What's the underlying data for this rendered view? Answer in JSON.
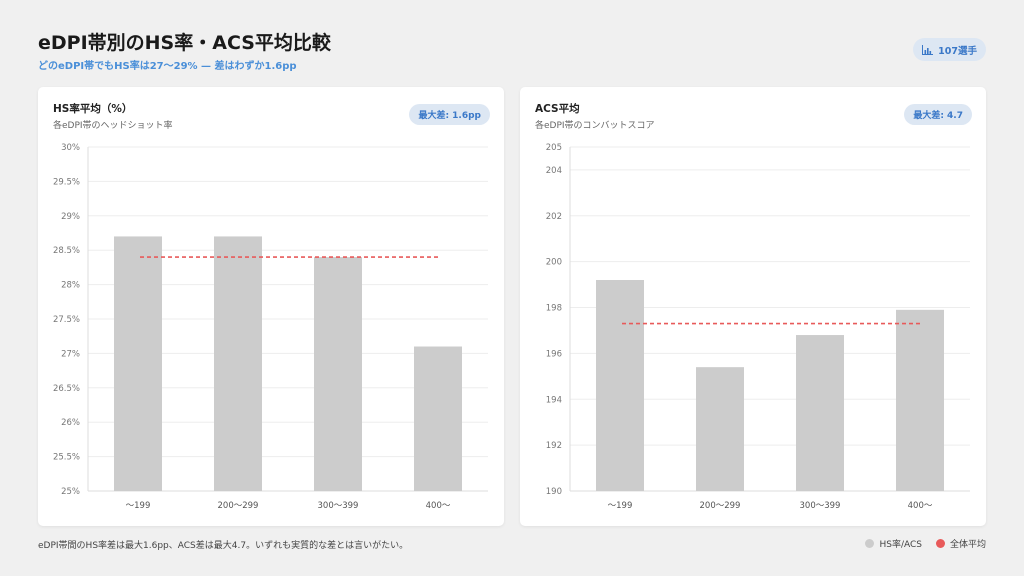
{
  "header": {
    "title": "eDPI帯別のHS率・ACS平均比較",
    "subtitle": "どのeDPI帯でもHS率は27〜29% — 差はわずか1.6pp",
    "player_count": "107選手"
  },
  "colors": {
    "bar": "#cccccc",
    "average_line": "#e85a5a",
    "accent": "#3a78c8",
    "badge_bg": "#dde7f3"
  },
  "chart_data": [
    {
      "id": "hs",
      "type": "bar",
      "title": "HS率平均（%）",
      "subtitle": "各eDPI帯のヘッドショット率",
      "badge": "最大差: 1.6pp",
      "categories": [
        "〜199",
        "200〜299",
        "300〜399",
        "400〜"
      ],
      "series": [
        {
          "name": "HS率/ACS",
          "values": [
            28.7,
            28.7,
            28.4,
            27.1
          ]
        }
      ],
      "average": 28.4,
      "ylim": [
        25,
        30
      ],
      "yticks": [
        25,
        25.5,
        26,
        26.5,
        27,
        27.5,
        28,
        28.5,
        29,
        29.5,
        30
      ],
      "ytick_labels": [
        "25%",
        "25.5%",
        "26%",
        "26.5%",
        "27%",
        "27.5%",
        "28%",
        "28.5%",
        "29%",
        "29.5%",
        "30%"
      ],
      "grid": true
    },
    {
      "id": "acs",
      "type": "bar",
      "title": "ACS平均",
      "subtitle": "各eDPI帯のコンバットスコア",
      "badge": "最大差: 4.7",
      "categories": [
        "〜199",
        "200〜299",
        "300〜399",
        "400〜"
      ],
      "series": [
        {
          "name": "HS率/ACS",
          "values": [
            199.2,
            195.4,
            196.8,
            197.9
          ]
        }
      ],
      "average": 197.3,
      "ylim": [
        190,
        205
      ],
      "yticks": [
        190,
        192,
        194,
        196,
        198,
        200,
        202,
        204,
        205
      ],
      "ytick_labels": [
        "190",
        "192",
        "194",
        "196",
        "198",
        "200",
        "202",
        "204",
        "205"
      ],
      "grid": true
    }
  ],
  "footer": {
    "note": "eDPI帯間のHS率差は最大1.6pp、ACS差は最大4.7。いずれも実質的な差とは言いがたい。",
    "legend": [
      {
        "label": "HS率/ACS",
        "color": "#cccccc"
      },
      {
        "label": "全体平均",
        "color": "#e85a5a"
      }
    ]
  }
}
